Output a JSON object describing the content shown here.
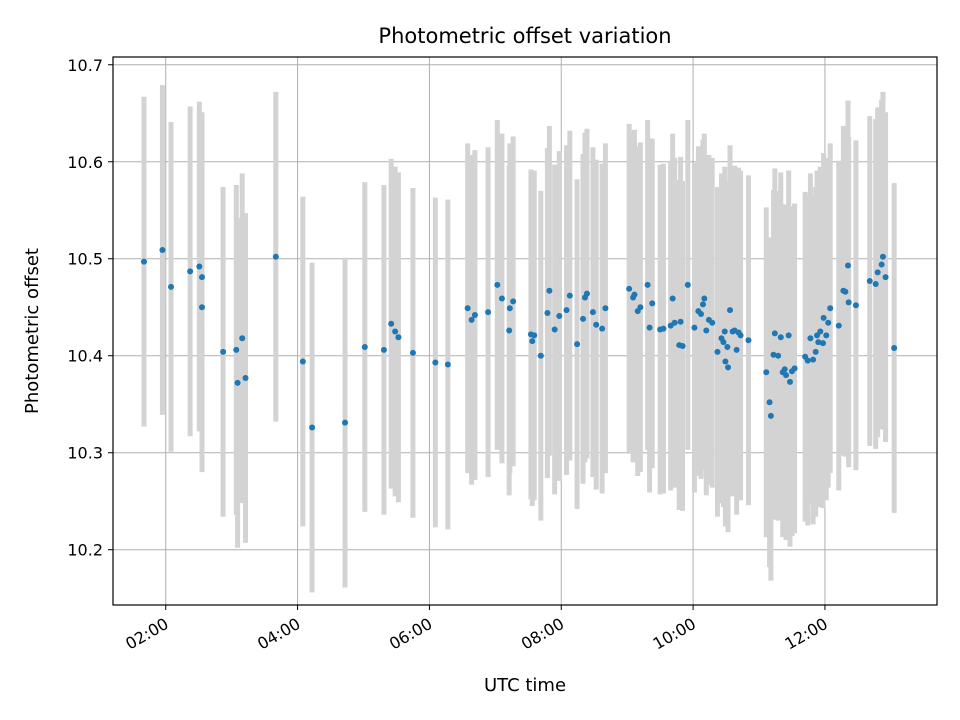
{
  "chart_data": {
    "type": "scatter",
    "title": "Photometric offset variation",
    "xlabel": "UTC time",
    "ylabel": "Photometric offset",
    "x_unit": "hours UTC",
    "xlim": [
      1.2,
      13.7
    ],
    "ylim": [
      10.143,
      10.708
    ],
    "x_ticks": [
      {
        "value": 2,
        "label": "02:00"
      },
      {
        "value": 4,
        "label": "04:00"
      },
      {
        "value": 6,
        "label": "06:00"
      },
      {
        "value": 8,
        "label": "08:00"
      },
      {
        "value": 10,
        "label": "10:00"
      },
      {
        "value": 12,
        "label": "12:00"
      }
    ],
    "y_ticks": [
      {
        "value": 10.2,
        "label": "10.2"
      },
      {
        "value": 10.3,
        "label": "10.3"
      },
      {
        "value": 10.4,
        "label": "10.4"
      },
      {
        "value": 10.5,
        "label": "10.5"
      },
      {
        "value": 10.6,
        "label": "10.6"
      },
      {
        "value": 10.7,
        "label": "10.7"
      }
    ],
    "grid": true,
    "colors": {
      "points": "#1f77b4",
      "errorbars": "#d3d3d3",
      "grid": "#b0b0b0"
    },
    "error_bar": 0.17,
    "points": [
      [
        1.67,
        10.497
      ],
      [
        1.95,
        10.509
      ],
      [
        2.08,
        10.471
      ],
      [
        2.37,
        10.487
      ],
      [
        2.51,
        10.492
      ],
      [
        2.55,
        10.481
      ],
      [
        2.55,
        10.45
      ],
      [
        2.87,
        10.404
      ],
      [
        3.07,
        10.406
      ],
      [
        3.09,
        10.372
      ],
      [
        3.16,
        10.418
      ],
      [
        3.21,
        10.377
      ],
      [
        3.67,
        10.502
      ],
      [
        4.08,
        10.394
      ],
      [
        4.22,
        10.326
      ],
      [
        4.72,
        10.331
      ],
      [
        5.02,
        10.409
      ],
      [
        5.31,
        10.406
      ],
      [
        5.42,
        10.433
      ],
      [
        5.48,
        10.425
      ],
      [
        5.53,
        10.419
      ],
      [
        5.75,
        10.403
      ],
      [
        6.09,
        10.393
      ],
      [
        6.28,
        10.391
      ],
      [
        6.58,
        10.449
      ],
      [
        6.64,
        10.437
      ],
      [
        6.69,
        10.442
      ],
      [
        6.89,
        10.445
      ],
      [
        7.03,
        10.473
      ],
      [
        7.1,
        10.459
      ],
      [
        7.21,
        10.426
      ],
      [
        7.22,
        10.449
      ],
      [
        7.27,
        10.456
      ],
      [
        7.54,
        10.422
      ],
      [
        7.56,
        10.415
      ],
      [
        7.59,
        10.421
      ],
      [
        7.69,
        10.4
      ],
      [
        7.79,
        10.444
      ],
      [
        7.82,
        10.467
      ],
      [
        7.9,
        10.427
      ],
      [
        7.97,
        10.441
      ],
      [
        8.08,
        10.447
      ],
      [
        8.13,
        10.462
      ],
      [
        8.24,
        10.412
      ],
      [
        8.33,
        10.438
      ],
      [
        8.36,
        10.46
      ],
      [
        8.39,
        10.464
      ],
      [
        8.48,
        10.445
      ],
      [
        8.53,
        10.432
      ],
      [
        8.62,
        10.428
      ],
      [
        8.67,
        10.449
      ],
      [
        9.03,
        10.469
      ],
      [
        9.09,
        10.46
      ],
      [
        9.11,
        10.463
      ],
      [
        9.16,
        10.446
      ],
      [
        9.2,
        10.45
      ],
      [
        9.31,
        10.473
      ],
      [
        9.34,
        10.429
      ],
      [
        9.38,
        10.454
      ],
      [
        9.5,
        10.427
      ],
      [
        9.55,
        10.428
      ],
      [
        9.66,
        10.431
      ],
      [
        9.69,
        10.459
      ],
      [
        9.72,
        10.434
      ],
      [
        9.79,
        10.411
      ],
      [
        9.81,
        10.435
      ],
      [
        9.84,
        10.41
      ],
      [
        9.92,
        10.473
      ],
      [
        10.02,
        10.429
      ],
      [
        10.08,
        10.446
      ],
      [
        10.12,
        10.443
      ],
      [
        10.15,
        10.453
      ],
      [
        10.17,
        10.459
      ],
      [
        10.2,
        10.426
      ],
      [
        10.24,
        10.437
      ],
      [
        10.29,
        10.434
      ],
      [
        10.37,
        10.404
      ],
      [
        10.43,
        10.418
      ],
      [
        10.46,
        10.414
      ],
      [
        10.48,
        10.425
      ],
      [
        10.49,
        10.394
      ],
      [
        10.52,
        10.409
      ],
      [
        10.53,
        10.388
      ],
      [
        10.56,
        10.447
      ],
      [
        10.6,
        10.425
      ],
      [
        10.63,
        10.426
      ],
      [
        10.66,
        10.406
      ],
      [
        10.69,
        10.424
      ],
      [
        10.72,
        10.421
      ],
      [
        10.84,
        10.416
      ],
      [
        11.11,
        10.383
      ],
      [
        11.16,
        10.352
      ],
      [
        11.18,
        10.338
      ],
      [
        11.22,
        10.401
      ],
      [
        11.24,
        10.423
      ],
      [
        11.29,
        10.4
      ],
      [
        11.33,
        10.419
      ],
      [
        11.36,
        10.383
      ],
      [
        11.39,
        10.386
      ],
      [
        11.41,
        10.38
      ],
      [
        11.45,
        10.421
      ],
      [
        11.47,
        10.373
      ],
      [
        11.5,
        10.384
      ],
      [
        11.54,
        10.387
      ],
      [
        11.7,
        10.399
      ],
      [
        11.74,
        10.395
      ],
      [
        11.78,
        10.418
      ],
      [
        11.82,
        10.396
      ],
      [
        11.86,
        10.404
      ],
      [
        11.88,
        10.421
      ],
      [
        11.9,
        10.414
      ],
      [
        11.93,
        10.425
      ],
      [
        11.97,
        10.413
      ],
      [
        11.98,
        10.439
      ],
      [
        12.02,
        10.421
      ],
      [
        12.05,
        10.434
      ],
      [
        12.08,
        10.449
      ],
      [
        12.21,
        10.431
      ],
      [
        12.28,
        10.467
      ],
      [
        12.31,
        10.466
      ],
      [
        12.35,
        10.493
      ],
      [
        12.36,
        10.455
      ],
      [
        12.47,
        10.452
      ],
      [
        12.68,
        10.477
      ],
      [
        12.77,
        10.474
      ],
      [
        12.8,
        10.486
      ],
      [
        12.86,
        10.494
      ],
      [
        12.88,
        10.502
      ],
      [
        12.92,
        10.481
      ],
      [
        13.05,
        10.408
      ]
    ]
  }
}
